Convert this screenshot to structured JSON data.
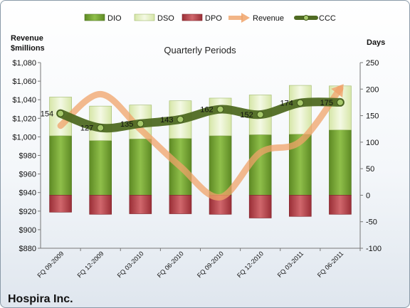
{
  "chart_data": {
    "type": "bar",
    "title": "Quarterly Periods",
    "company": "Hospira Inc.",
    "left_axis_label": [
      "Revenue",
      "$millions"
    ],
    "right_axis_label": "Days",
    "left_axis": {
      "ylim": [
        880,
        1080
      ],
      "ticks": [
        880,
        900,
        920,
        940,
        960,
        980,
        1000,
        1020,
        1040,
        1060,
        1080
      ],
      "tick_labels": [
        "$880",
        "$900",
        "$920",
        "$940",
        "$960",
        "$980",
        "$1,000",
        "$1,020",
        "$1,040",
        "$1,060",
        "$1,080"
      ]
    },
    "right_axis": {
      "ylim": [
        -100,
        250
      ],
      "ticks": [
        -100,
        -50,
        0,
        50,
        100,
        150,
        200,
        250
      ],
      "tick_labels": [
        "-100",
        "-50",
        "0",
        "50",
        "100",
        "150",
        "200",
        "250"
      ]
    },
    "categories": [
      "FQ 09-2009",
      "FQ 12-2009",
      "FQ 03-2010",
      "FQ 06-2010",
      "FQ 09-2010",
      "FQ 12-2010",
      "FQ 03-2011",
      "FQ 06-2011"
    ],
    "legend": [
      "DIO",
      "DSO",
      "DPO",
      "Revenue",
      "CCC"
    ],
    "legend_position": "top",
    "series": [
      {
        "name": "DIO",
        "axis": "right",
        "color": "#77a33a",
        "values": [
          112,
          103,
          106,
          107,
          112,
          114,
          115,
          123
        ]
      },
      {
        "name": "DSO",
        "axis": "right",
        "color": "#eaf2d2",
        "values": [
          73,
          65,
          64,
          71,
          71,
          75,
          92,
          83
        ]
      },
      {
        "name": "DPO",
        "axis": "right",
        "color": "#b8434a",
        "values": [
          -32,
          -36,
          -35,
          -35,
          -36,
          -43,
          -40,
          -36
        ]
      },
      {
        "name": "Revenue",
        "axis": "left",
        "color": "#f0a36a",
        "values": [
          1012,
          1046,
          1008,
          968,
          935,
          983,
          995,
          1052
        ]
      },
      {
        "name": "CCC",
        "axis": "right",
        "color": "#556b2f",
        "values": [
          154,
          127,
          135,
          143,
          162,
          152,
          174,
          175
        ]
      }
    ],
    "data_labels": [
      "154",
      "127",
      "135",
      "143",
      "162",
      "152",
      "174",
      "175"
    ],
    "grid": false
  }
}
